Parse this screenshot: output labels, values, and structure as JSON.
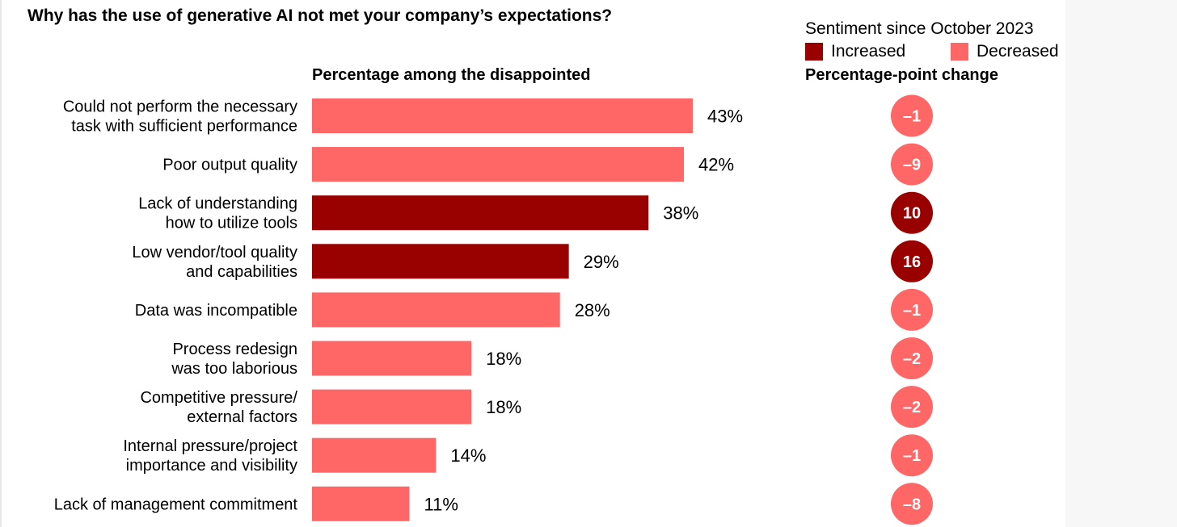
{
  "chart_data": {
    "type": "bar",
    "orientation": "horizontal",
    "title": "Why has the use of generative AI not met your company’s expectations?",
    "bar_header": "Percentage among the disappointed",
    "change_header": "Percentage-point change",
    "legend": {
      "title": "Sentiment since October 2023",
      "items": [
        {
          "label": "Increased",
          "color": "#990000"
        },
        {
          "label": "Decreased",
          "color": "#ff6666"
        }
      ]
    },
    "categories": [
      [
        "Could not perform the necessary",
        "task with sufficient performance"
      ],
      [
        "Poor output quality"
      ],
      [
        "Lack of understanding",
        "how to utilize tools"
      ],
      [
        "Low vendor/tool quality",
        "and capabilities"
      ],
      [
        "Data was incompatible"
      ],
      [
        "Process redesign",
        "was too laborious"
      ],
      [
        "Competitive pressure/",
        "external factors"
      ],
      [
        "Internal pressure/project",
        "importance and visibility"
      ],
      [
        "Lack of management commitment"
      ]
    ],
    "values": [
      43,
      42,
      38,
      29,
      28,
      18,
      18,
      14,
      11
    ],
    "value_labels": [
      "43%",
      "42%",
      "38%",
      "29%",
      "28%",
      "18%",
      "18%",
      "14%",
      "11%"
    ],
    "change": [
      -1,
      -9,
      10,
      16,
      -1,
      -2,
      -2,
      -1,
      -8
    ],
    "change_labels": [
      "–1",
      "–9",
      "10",
      "16",
      "–1",
      "–2",
      "–2",
      "–1",
      "–8"
    ],
    "sentiment": [
      "Decreased",
      "Decreased",
      "Increased",
      "Increased",
      "Decreased",
      "Decreased",
      "Decreased",
      "Decreased",
      "Decreased"
    ],
    "colors": {
      "increased": "#990000",
      "decreased": "#ff6666"
    }
  }
}
